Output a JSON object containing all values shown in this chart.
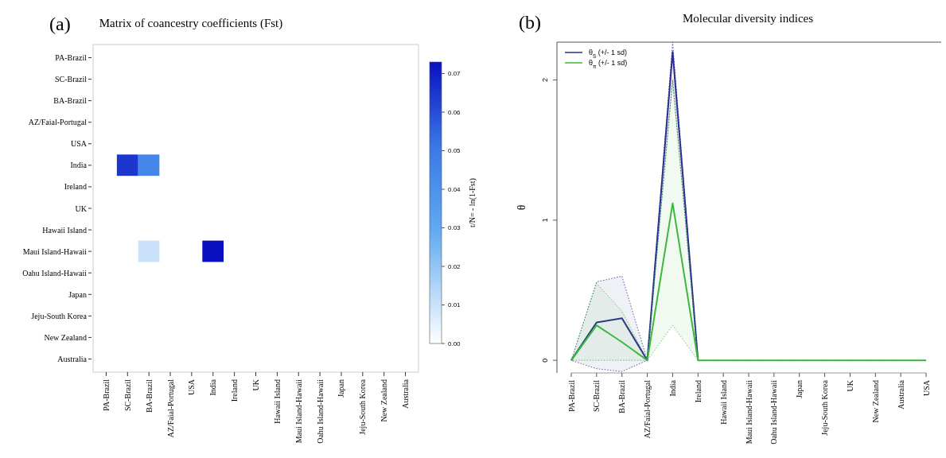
{
  "chart_data": [
    {
      "type": "heatmap",
      "title": "Matrix of coancestry coefficients (Fst)",
      "annotations": [
        "(a)"
      ],
      "clabel": "t/N= - ln(1-Fst)",
      "categories": [
        "PA-Brazil",
        "SC-Brazil",
        "BA-Brazil",
        "AZ/Faial-Portugal",
        "USA",
        "India",
        "Ireland",
        "UK",
        "Hawaii Island",
        "Maui Island-Hawaii",
        "Oahu Island-Hawaii",
        "Japan",
        "Jeju-South Korea",
        "New Zealand",
        "Australia"
      ],
      "y_categories": [
        "PA-Brazil",
        "SC-Brazil",
        "BA-Brazil",
        "AZ/Faial-Portugal",
        "USA",
        "India",
        "Ireland",
        "UK",
        "Hawaii Island",
        "Maui Island-Hawaii",
        "Oahu Island-Hawaii",
        "Japan",
        "Jeju-South Korea",
        "New Zealand",
        "Australia"
      ],
      "cells": [
        [
          0,
          0,
          0,
          0,
          0,
          0,
          0,
          0,
          0,
          0,
          0,
          0,
          0,
          0,
          0
        ],
        [
          0,
          0,
          0,
          0,
          0,
          0,
          0,
          0,
          0,
          0,
          0,
          0,
          0,
          0,
          0
        ],
        [
          0,
          0,
          0,
          0,
          0,
          0,
          0,
          0,
          0,
          0,
          0,
          0,
          0,
          0,
          0
        ],
        [
          0,
          0,
          0,
          0,
          0,
          0,
          0,
          0,
          0,
          0,
          0,
          0,
          0,
          0,
          0
        ],
        [
          0,
          0,
          0,
          0,
          0,
          0,
          0,
          0,
          0,
          0,
          0,
          0,
          0,
          0,
          0
        ],
        [
          0,
          0.065,
          0.045,
          0,
          0,
          0,
          0,
          0,
          0,
          0,
          0,
          0,
          0,
          0,
          0
        ],
        [
          0,
          0,
          0,
          0,
          0,
          0,
          0,
          0,
          0,
          0,
          0,
          0,
          0,
          0,
          0
        ],
        [
          0,
          0,
          0,
          0,
          0,
          0,
          0,
          0,
          0,
          0,
          0,
          0,
          0,
          0,
          0
        ],
        [
          0,
          0,
          0,
          0,
          0,
          0,
          0,
          0,
          0,
          0,
          0,
          0,
          0,
          0,
          0
        ],
        [
          0,
          0,
          0.01,
          0,
          0,
          0.073,
          0,
          0,
          0,
          0,
          0,
          0,
          0,
          0,
          0
        ],
        [
          0,
          0,
          0,
          0,
          0,
          0,
          0,
          0,
          0,
          0,
          0,
          0,
          0,
          0,
          0
        ],
        [
          0,
          0,
          0,
          0,
          0,
          0,
          0,
          0,
          0,
          0,
          0,
          0,
          0,
          0,
          0
        ],
        [
          0,
          0,
          0,
          0,
          0,
          0,
          0,
          0,
          0,
          0,
          0,
          0,
          0,
          0,
          0
        ],
        [
          0,
          0,
          0,
          0,
          0,
          0,
          0,
          0,
          0,
          0,
          0,
          0,
          0,
          0,
          0
        ],
        [
          0,
          0,
          0,
          0,
          0,
          0,
          0,
          0,
          0,
          0,
          0,
          0,
          0,
          0,
          0
        ]
      ],
      "clim": [
        0,
        0.073
      ],
      "cticks": [
        {
          "value": 0,
          "label": "0.00"
        },
        {
          "value": 0.01,
          "label": "0.01"
        },
        {
          "value": 0.02,
          "label": "0.02"
        },
        {
          "value": 0.03,
          "label": "0.03"
        },
        {
          "value": 0.04,
          "label": "0.04"
        },
        {
          "value": 0.05,
          "label": "0.05"
        },
        {
          "value": 0.06,
          "label": "0.06"
        },
        {
          "value": 0.07,
          "label": "0.07"
        }
      ]
    },
    {
      "type": "line",
      "title": "Molecular diversity indices",
      "annotations": [
        "(b)"
      ],
      "ylabel": "θ",
      "categories": [
        "PA-Brazil",
        "SC-Brazil",
        "BA-Brazil",
        "AZ/Faial-Portugal",
        "India",
        "Ireland",
        "Hawaii Island",
        "Maui Island-Hawaii",
        "Oahu Island-Hawaii",
        "Japan",
        "Jeju-South Korea",
        "UK",
        "New Zealand",
        "Australia",
        "USA"
      ],
      "series": [
        {
          "name": "θ$_{S}$ (+/- 1 sd)",
          "color": "#2b2f8f",
          "values": [
            0,
            0.27,
            0.3,
            0,
            2.2,
            0,
            null,
            null,
            null,
            null,
            null,
            null,
            null,
            null,
            null
          ],
          "lower": [
            0,
            -0.06,
            -0.08,
            0,
            2.0,
            0,
            null,
            null,
            null,
            null,
            null,
            null,
            null,
            null,
            null
          ],
          "upper": [
            0,
            0.56,
            0.6,
            0,
            2.27,
            0,
            null,
            null,
            null,
            null,
            null,
            null,
            null,
            null,
            null
          ]
        },
        {
          "name": "θ$_{π}$ (+/- 1 sd)",
          "color": "#3cb83c",
          "values": [
            0,
            0.25,
            0.13,
            0,
            1.12,
            0,
            0,
            0,
            0,
            0,
            0,
            0,
            0,
            0,
            0
          ],
          "lower": [
            0,
            0,
            0,
            0,
            0.25,
            0,
            0,
            0,
            0,
            0,
            0,
            0,
            0,
            0,
            0
          ],
          "upper": [
            0,
            0.55,
            0.35,
            0,
            2.0,
            0,
            0,
            0,
            0,
            0,
            0,
            0,
            0,
            0,
            0
          ]
        }
      ],
      "ylim": [
        -0.09,
        2.27
      ],
      "yticks": [
        0,
        1,
        2
      ],
      "legend": "top left",
      "line_style": "solid",
      "marker": "none"
    }
  ]
}
